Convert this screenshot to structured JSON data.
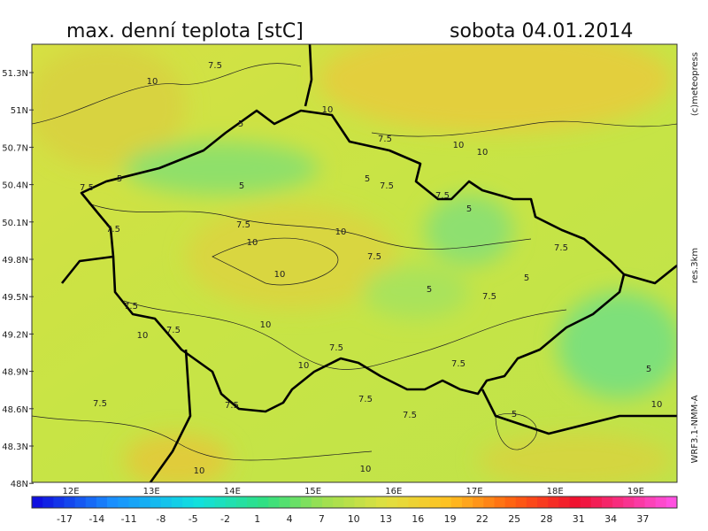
{
  "header": {
    "title": "max. denní teplota [stC]",
    "date": "sobota 04.01.2014"
  },
  "side_texts": {
    "copyright": "(c)meteopress",
    "resolution": "res.3km",
    "model": "WRF3.1-NMM-A"
  },
  "latitude_labels": [
    "51.3N",
    "51N",
    "50.7N",
    "50.4N",
    "50.1N",
    "49.8N",
    "49.5N",
    "49.2N",
    "48.9N",
    "48.6N",
    "48.3N",
    "48N"
  ],
  "longitude_labels": [
    "12E",
    "13E",
    "14E",
    "15E",
    "16E",
    "17E",
    "18E",
    "19E"
  ],
  "colorbar_ticks": [
    "-17",
    "-14",
    "-11",
    "-8",
    "-5",
    "-2",
    "1",
    "4",
    "7",
    "10",
    "13",
    "16",
    "19",
    "22",
    "25",
    "28",
    "31",
    "34",
    "37"
  ],
  "contour_labels": [
    "7.5",
    "10",
    "5",
    "10",
    "7.5",
    "10",
    "10",
    "7.5",
    "5",
    "5",
    "5",
    "7.5",
    "7.5",
    "5",
    "7.5",
    "7.5",
    "10",
    "10",
    "7.5",
    "10",
    "7.5",
    "5",
    "5",
    "7.5",
    "7.5",
    "10",
    "7.5",
    "10",
    "7.5",
    "10",
    "7.5",
    "5",
    "7.5",
    "7.5",
    "7.5",
    "7.5",
    "5",
    "10",
    "10",
    "10"
  ]
}
